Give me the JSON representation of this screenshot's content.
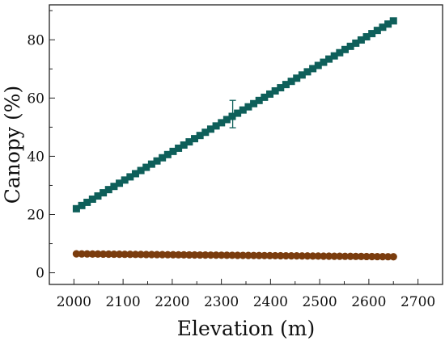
{
  "chart_data": {
    "type": "scatter",
    "title": "",
    "xlabel": "Elevation (m)",
    "ylabel": "Canopy  (%)",
    "xlim": [
      1950,
      2750
    ],
    "ylim": [
      -4,
      92
    ],
    "x_ticks": [
      2000,
      2100,
      2200,
      2300,
      2400,
      2500,
      2600,
      2700
    ],
    "x_tick_labels": [
      "2000",
      "2100",
      "2200",
      "2300",
      "2400",
      "2500",
      "2600",
      "2700"
    ],
    "y_ticks": [
      0,
      20,
      40,
      60,
      80
    ],
    "y_tick_labels": [
      "0",
      "20",
      "40",
      "60",
      "80"
    ],
    "grid": false,
    "legend": "none",
    "x_range": [
      2005,
      2650
    ],
    "series": [
      {
        "marker": "square",
        "color": "#0e5f5a",
        "start": 22.0,
        "end": 86.5,
        "errorbar": {
          "x": 2323,
          "y": 54.0,
          "low": 49.8,
          "high": 59.2
        }
      },
      {
        "marker": "circle",
        "color": "#7a3c0e",
        "start": 6.5,
        "end": 5.5
      }
    ]
  }
}
